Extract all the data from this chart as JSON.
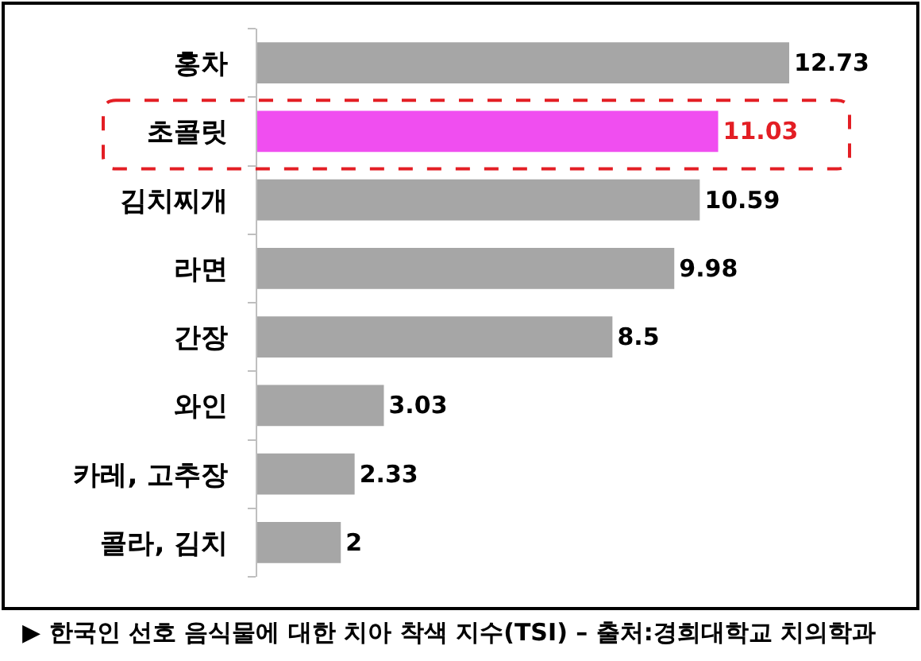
{
  "chart_data": {
    "type": "bar",
    "orientation": "horizontal",
    "categories": [
      "홍차",
      "초콜릿",
      "김치찌개",
      "라면",
      "간장",
      "와인",
      "카레, 고추장",
      "콜라, 김치"
    ],
    "values": [
      12.73,
      11.03,
      10.59,
      9.98,
      8.5,
      3.03,
      2.33,
      2
    ],
    "colors": [
      "#a6a6a6",
      "#f04ef0",
      "#a6a6a6",
      "#a6a6a6",
      "#a6a6a6",
      "#a6a6a6",
      "#a6a6a6",
      "#a6a6a6"
    ],
    "data_labels": true,
    "tick_labels": "y",
    "annotations": [
      "▶ 한국인 선호 음식물에 대한 치아 착색 지수(TSI) – 출처:경희대학교 치의학과"
    ]
  }
}
